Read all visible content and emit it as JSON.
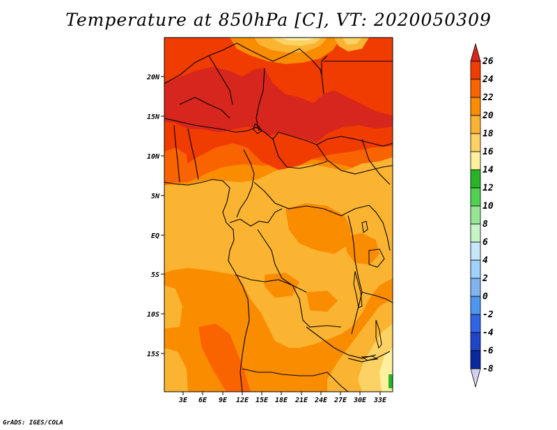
{
  "title": "Temperature at 850hPa [C], VT: 2020050309",
  "footer": "GrADS: IGES/COLA",
  "lat_labels": [
    "20N",
    "15N",
    "10N",
    "5N",
    "EQ",
    "5S",
    "10S",
    "15S"
  ],
  "lon_labels": [
    "3E",
    "6E",
    "9E",
    "12E",
    "15E",
    "18E",
    "21E",
    "24E",
    "27E",
    "30E",
    "33E"
  ],
  "colorbar": {
    "labels": [
      "26",
      "24",
      "22",
      "20",
      "18",
      "16",
      "14",
      "12",
      "10",
      "8",
      "6",
      "4",
      "2",
      "0",
      "-2",
      "-4",
      "-6",
      "-8"
    ],
    "colors": [
      "#d7261e",
      "#f03c00",
      "#fa6400",
      "#fa8c00",
      "#fab432",
      "#fcd264",
      "#fff0a0",
      "#28b428",
      "#50d250",
      "#96e696",
      "#c8f5c8",
      "#c8e6fa",
      "#a0d2fa",
      "#82b4f0",
      "#5096f0",
      "#3264e6",
      "#1e46c8",
      "#0a28a0",
      "#000082",
      "#d2d2f0"
    ]
  },
  "field_colors": {
    "t26": "#d7261e",
    "t24": "#f03c00",
    "t22": "#fa6400",
    "t20": "#fa8c00",
    "t18": "#fab432",
    "t16": "#fcd264",
    "t14": "#fff0a0",
    "t12": "#28b428"
  }
}
